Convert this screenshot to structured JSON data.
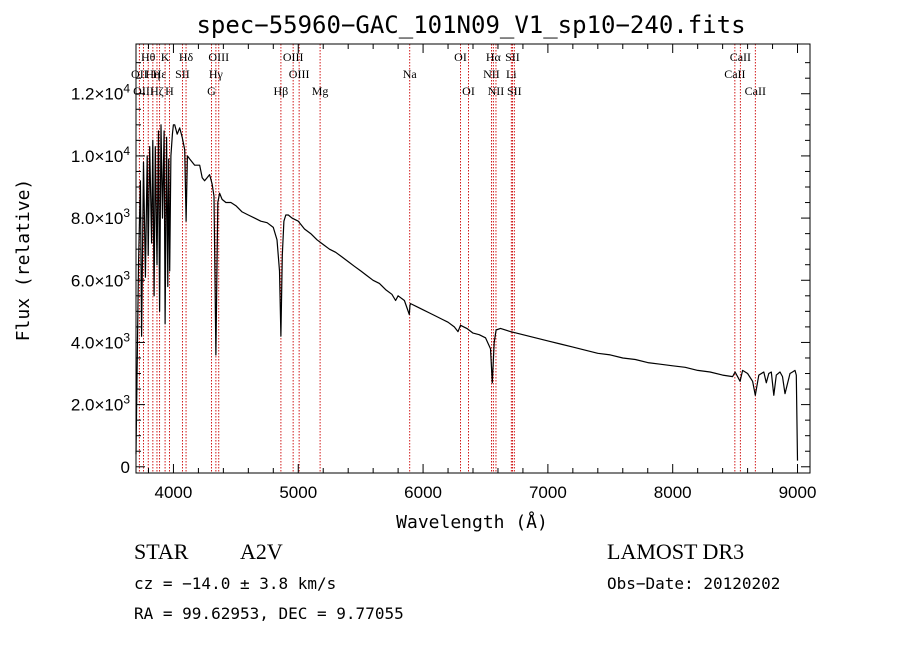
{
  "chart_data": {
    "type": "line",
    "title": "spec−55960−GAC_101N09_V1_sp10−240.fits",
    "xlabel": "Wavelength (Å)",
    "ylabel": "Flux (relative)",
    "xlim": [
      3700,
      9100
    ],
    "ylim": [
      -200,
      13600
    ],
    "x_ticks": [
      4000,
      5000,
      6000,
      7000,
      8000,
      9000
    ],
    "x_tick_labels": [
      "4000",
      "5000",
      "6000",
      "7000",
      "8000",
      "9000"
    ],
    "y_ticks": [
      {
        "value": 0,
        "label": "0"
      },
      {
        "value": 2000,
        "mantissa": "2.0×10",
        "exp": "3"
      },
      {
        "value": 4000,
        "mantissa": "4.0×10",
        "exp": "3"
      },
      {
        "value": 6000,
        "mantissa": "6.0×10",
        "exp": "3"
      },
      {
        "value": 8000,
        "mantissa": "8.0×10",
        "exp": "3"
      },
      {
        "value": 10000,
        "mantissa": "1.0×10",
        "exp": "4"
      },
      {
        "value": 12000,
        "mantissa": "1.2×10",
        "exp": "4"
      }
    ],
    "series": [
      {
        "name": "spectrum",
        "color": "#000000",
        "x": [
          3700,
          3720,
          3735,
          3745,
          3760,
          3775,
          3790,
          3798,
          3810,
          3825,
          3835,
          3845,
          3855,
          3868,
          3880,
          3889,
          3900,
          3912,
          3925,
          3933,
          3945,
          3955,
          3962,
          3970,
          3980,
          3992,
          4000,
          4010,
          4030,
          4050,
          4070,
          4090,
          4101,
          4112,
          4130,
          4150,
          4170,
          4190,
          4210,
          4230,
          4250,
          4270,
          4290,
          4310,
          4325,
          4340,
          4355,
          4370,
          4390,
          4420,
          4460,
          4500,
          4550,
          4600,
          4650,
          4700,
          4750,
          4800,
          4830,
          4850,
          4861,
          4872,
          4885,
          4900,
          4920,
          4950,
          5000,
          5050,
          5100,
          5150,
          5200,
          5250,
          5300,
          5350,
          5400,
          5450,
          5500,
          5550,
          5600,
          5650,
          5700,
          5750,
          5780,
          5800,
          5850,
          5890,
          5895,
          5900,
          5950,
          6000,
          6050,
          6100,
          6150,
          6200,
          6250,
          6280,
          6300,
          6350,
          6400,
          6450,
          6500,
          6540,
          6555,
          6563,
          6570,
          6585,
          6620,
          6700,
          6800,
          6900,
          7000,
          7100,
          7200,
          7300,
          7400,
          7500,
          7600,
          7700,
          7800,
          7900,
          8000,
          8100,
          8200,
          8300,
          8400,
          8480,
          8500,
          8540,
          8560,
          8600,
          8640,
          8662,
          8690,
          8730,
          8750,
          8770,
          8790,
          8810,
          8830,
          8860,
          8880,
          8900,
          8940,
          8960,
          8980,
          8990,
          9000
        ],
        "y": [
          400,
          6500,
          9200,
          4200,
          9800,
          6100,
          10000,
          6800,
          10300,
          7200,
          10500,
          5500,
          10300,
          6500,
          10800,
          5000,
          11000,
          8000,
          10800,
          4600,
          10600,
          5800,
          9900,
          6300,
          10000,
          10700,
          11000,
          11000,
          10700,
          10900,
          10600,
          10200,
          7900,
          10000,
          9900,
          9800,
          9700,
          9700,
          9700,
          9300,
          9200,
          9300,
          9400,
          9100,
          8700,
          3600,
          8500,
          8800,
          8600,
          8500,
          8500,
          8400,
          8200,
          8100,
          8000,
          7900,
          7850,
          7700,
          7300,
          6300,
          4200,
          6800,
          7900,
          8100,
          8100,
          8000,
          7900,
          7650,
          7500,
          7300,
          7150,
          7000,
          6900,
          6750,
          6600,
          6450,
          6300,
          6150,
          6000,
          5900,
          5700,
          5550,
          5350,
          5500,
          5350,
          4900,
          5200,
          5250,
          5150,
          5050,
          4950,
          4850,
          4750,
          4650,
          4500,
          4350,
          4550,
          4450,
          4300,
          4250,
          4150,
          3800,
          2700,
          3400,
          4000,
          4400,
          4450,
          4350,
          4250,
          4150,
          4050,
          3950,
          3850,
          3750,
          3650,
          3600,
          3500,
          3450,
          3350,
          3300,
          3250,
          3200,
          3100,
          3050,
          2950,
          2900,
          3050,
          2750,
          3100,
          3000,
          2750,
          2300,
          2950,
          3050,
          2700,
          3000,
          3050,
          2300,
          2950,
          3050,
          2900,
          2350,
          3000,
          3050,
          3100,
          2950,
          200
        ]
      }
    ],
    "spectral_lines": [
      {
        "label": "Hθ",
        "wavelength": 3798,
        "row": 1
      },
      {
        "label": "K",
        "wavelength": 3933,
        "row": 1
      },
      {
        "label": "Hδ",
        "wavelength": 4101,
        "row": 1
      },
      {
        "label": "OIII",
        "wavelength": 4363,
        "row": 1
      },
      {
        "label": "OIII",
        "wavelength": 4959,
        "row": 1
      },
      {
        "label": "OI",
        "wavelength": 6300,
        "row": 1
      },
      {
        "label": "Hα",
        "wavelength": 6563,
        "row": 1
      },
      {
        "label": "SII",
        "wavelength": 6716,
        "row": 1
      },
      {
        "label": "CaII",
        "wavelength": 8542,
        "row": 1
      },
      {
        "label": "OII",
        "wavelength": 3727,
        "row": 2
      },
      {
        "label": "Hη",
        "wavelength": 3835,
        "row": 2
      },
      {
        "label": "Hε",
        "wavelength": 3889,
        "row": 2
      },
      {
        "label": "SII",
        "wavelength": 4072,
        "row": 2
      },
      {
        "label": "Hγ",
        "wavelength": 4340,
        "row": 2
      },
      {
        "label": "OIII",
        "wavelength": 5007,
        "row": 2
      },
      {
        "label": "Na",
        "wavelength": 5893,
        "row": 2
      },
      {
        "label": "NII",
        "wavelength": 6548,
        "row": 2
      },
      {
        "label": "Li",
        "wavelength": 6707,
        "row": 2
      },
      {
        "label": "CaII",
        "wavelength": 8498,
        "row": 2
      },
      {
        "label": "OIII",
        "wavelength": 3760,
        "row": 3
      },
      {
        "label": "Hζ",
        "wavelength": 3868,
        "row": 3
      },
      {
        "label": "H",
        "wavelength": 3968,
        "row": 3
      },
      {
        "label": "G",
        "wavelength": 4305,
        "row": 3
      },
      {
        "label": "Hβ",
        "wavelength": 4861,
        "row": 3
      },
      {
        "label": "Mg",
        "wavelength": 5175,
        "row": 3
      },
      {
        "label": "OI",
        "wavelength": 6364,
        "row": 3
      },
      {
        "label": "NII",
        "wavelength": 6584,
        "row": 3
      },
      {
        "label": "SII",
        "wavelength": 6731,
        "row": 3
      },
      {
        "label": "CaII",
        "wavelength": 8662,
        "row": 3
      }
    ],
    "line_color": "#cc0000"
  },
  "info": {
    "object_class": "STAR",
    "subclass": "A2V",
    "survey": "LAMOST DR3",
    "redshift": "cz = −14.0 ± 3.8 km/s",
    "obs_date": "Obs−Date: 20120202",
    "coords": "RA =  99.62953, DEC =   9.77055"
  }
}
